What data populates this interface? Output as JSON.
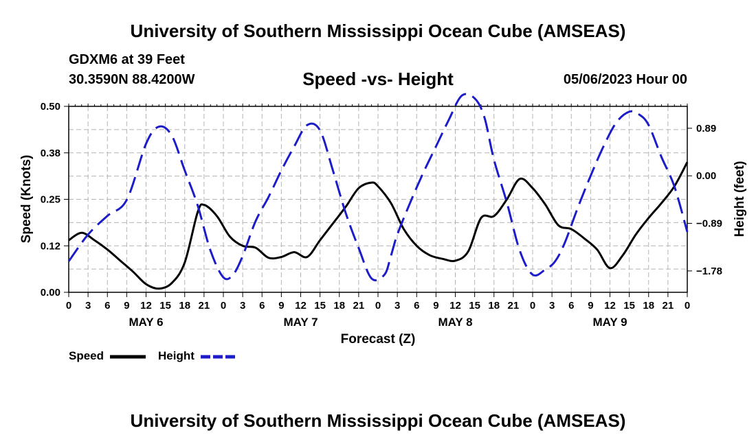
{
  "header": {
    "main_title": "University of Southern Mississippi Ocean Cube (AMSEAS)",
    "station": "GDXM6 at 39 Feet",
    "coords": "30.3590N  88.4200W",
    "subtitle": "Speed -vs- Height",
    "datetime": "05/06/2023 Hour 00"
  },
  "footer": {
    "title": "University of Southern Mississippi Ocean Cube (AMSEAS)"
  },
  "legend": {
    "speed_label": "Speed",
    "height_label": "Height"
  },
  "colors": {
    "speed": "#000000",
    "height": "#1c1cc8",
    "grid": "#b4b4b4"
  },
  "chart_data": {
    "type": "line",
    "xlabel": "Forecast (Z)",
    "ylabel_left": "Speed (Knots)",
    "ylabel_right": "Height (feet)",
    "x_range_hours": [
      0,
      96
    ],
    "ylim_left": [
      0,
      0.5
    ],
    "ylim_right": [
      -2.18,
      1.3
    ],
    "left_ticks": [
      "0.00",
      "0.12",
      "0.25",
      "0.38",
      "0.50"
    ],
    "left_tick_values": [
      0,
      0.125,
      0.25,
      0.375,
      0.5
    ],
    "right_ticks": [
      "0.89",
      "0.00",
      "−0.89",
      "−1.78"
    ],
    "right_tick_values": [
      0.89,
      0.0,
      -0.89,
      -1.78
    ],
    "x_tick_labels": [
      "0",
      "3",
      "6",
      "9",
      "12",
      "15",
      "18",
      "21",
      "0",
      "3",
      "6",
      "9",
      "12",
      "15",
      "18",
      "21",
      "0",
      "3",
      "6",
      "9",
      "12",
      "15",
      "18",
      "21",
      "0",
      "3",
      "6",
      "9",
      "12",
      "15",
      "18",
      "21",
      "0"
    ],
    "day_labels": [
      {
        "label": "MAY 6",
        "hour": 12
      },
      {
        "label": "MAY 7",
        "hour": 36
      },
      {
        "label": "MAY 8",
        "hour": 60
      },
      {
        "label": "MAY 9",
        "hour": 84
      }
    ],
    "series": [
      {
        "name": "Speed",
        "axis": "left",
        "style": "solid",
        "x": [
          0,
          2,
          4,
          6,
          8,
          10,
          12,
          14,
          16,
          18,
          20,
          21,
          23,
          25,
          27,
          29,
          31,
          33,
          35,
          37,
          39,
          41,
          43,
          45,
          47,
          48,
          50,
          52,
          54,
          56,
          58,
          60,
          62,
          64,
          66,
          68,
          70,
          72,
          74,
          76,
          78,
          80,
          82,
          84,
          86,
          88,
          90,
          92,
          94,
          96
        ],
        "values": [
          0.14,
          0.16,
          0.14,
          0.115,
          0.085,
          0.055,
          0.022,
          0.01,
          0.025,
          0.08,
          0.215,
          0.235,
          0.205,
          0.15,
          0.125,
          0.12,
          0.093,
          0.095,
          0.108,
          0.095,
          0.14,
          0.185,
          0.23,
          0.28,
          0.295,
          0.285,
          0.24,
          0.17,
          0.125,
          0.1,
          0.09,
          0.085,
          0.11,
          0.2,
          0.205,
          0.25,
          0.305,
          0.28,
          0.235,
          0.18,
          0.17,
          0.145,
          0.115,
          0.065,
          0.1,
          0.155,
          0.2,
          0.24,
          0.285,
          0.35
        ]
      },
      {
        "name": "Height",
        "axis": "right",
        "style": "dashed",
        "x": [
          0,
          3,
          6,
          9,
          12,
          14,
          16,
          18,
          20,
          22,
          24,
          25.5,
          27,
          29,
          31,
          33,
          35,
          37,
          39,
          41,
          43,
          45,
          47,
          49,
          50,
          51,
          53,
          55,
          57,
          59,
          61,
          63,
          64.5,
          66,
          68,
          70,
          72,
          74,
          75.5,
          77,
          79,
          81,
          83,
          85,
          87,
          88.5,
          90,
          92,
          94,
          96
        ],
        "values": [
          -1.6,
          -1.1,
          -0.75,
          -0.45,
          0.6,
          0.92,
          0.75,
          0.1,
          -0.55,
          -1.4,
          -1.9,
          -1.85,
          -1.5,
          -0.85,
          -0.4,
          0.1,
          0.55,
          0.95,
          0.85,
          0.1,
          -0.7,
          -1.35,
          -1.92,
          -1.85,
          -1.5,
          -1.1,
          -0.5,
          0.05,
          0.55,
          1.05,
          1.5,
          1.45,
          1.1,
          0.3,
          -0.5,
          -1.4,
          -1.85,
          -1.75,
          -1.6,
          -1.25,
          -0.6,
          0.0,
          0.55,
          1.0,
          1.2,
          1.15,
          0.95,
          0.35,
          -0.2,
          -1.05
        ]
      }
    ]
  }
}
